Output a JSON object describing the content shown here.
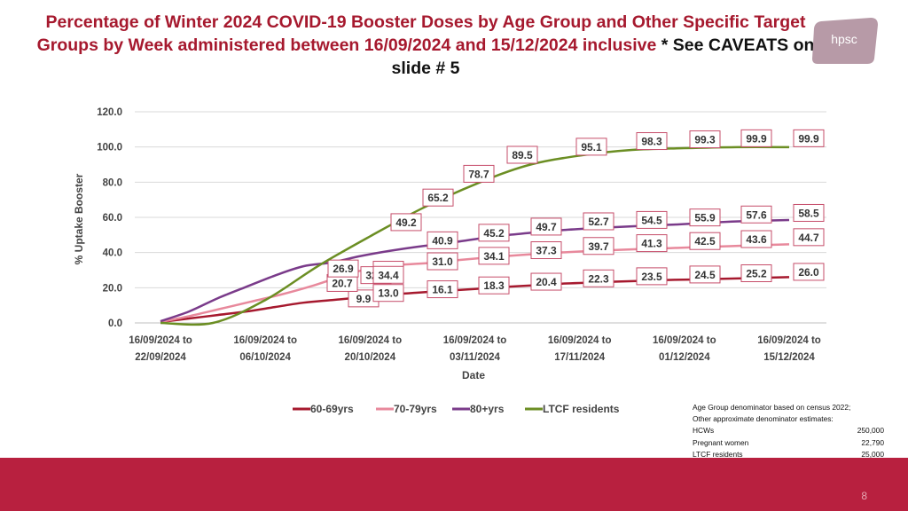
{
  "title": {
    "main": "Percentage of Winter 2024 COVID-19 Booster Doses by Age Group and Other Specific Target Groups by Week administered between 16/09/2024 and 15/12/2024 inclusive",
    "caveat": "* See CAVEATS on slide # 5"
  },
  "logo": {
    "text": "hpsc"
  },
  "chart_data": {
    "type": "line",
    "xlabel": "Date",
    "ylabel": "% Uptake Booster",
    "ylim": [
      0,
      120
    ],
    "yticks": [
      "0.0",
      "20.0",
      "40.0",
      "60.0",
      "80.0",
      "100.0",
      "120.0"
    ],
    "xtick_labels": [
      [
        "16/09/2024 to",
        "22/09/2024"
      ],
      [
        "16/09/2024 to",
        "06/10/2024"
      ],
      [
        "16/09/2024 to",
        "20/10/2024"
      ],
      [
        "16/09/2024 to",
        "03/11/2024"
      ],
      [
        "16/09/2024 to",
        "17/11/2024"
      ],
      [
        "16/09/2024 to",
        "01/12/2024"
      ],
      [
        "16/09/2024 to",
        "15/12/2024"
      ]
    ],
    "grid": true,
    "legend_position": "bottom",
    "series": [
      {
        "name": "60-69yrs",
        "color": "#a6192e",
        "values": [
          0.5,
          2.5,
          4.5,
          6.5,
          9.0,
          11.5,
          13.0,
          14.5,
          16.1,
          17.2,
          18.3,
          19.3,
          20.4,
          21.3,
          22.3,
          22.9,
          23.5,
          24.0,
          24.5,
          24.8,
          25.2,
          25.6,
          26.0
        ],
        "labels": {
          "6": "9.9",
          "8": "13.0",
          "10": "16.1",
          "12": "18.3",
          "14": "20.4",
          "16": "22.3",
          "18": "23.5",
          "20": "24.5",
          "22": "25.2",
          "24": "26.0"
        }
      },
      {
        "name": "70-79yrs",
        "color": "#e8899c",
        "values": [
          0.5,
          4.0,
          8.0,
          12.0,
          16.0,
          20.7,
          26.2,
          31.0,
          33.0,
          34.1,
          35.8,
          37.3,
          38.6,
          39.7,
          40.6,
          41.3,
          42.0,
          42.5,
          43.1,
          43.6,
          44.2,
          44.7
        ],
        "labels": {
          "10": "20.7",
          "12": "26.2",
          "14": "31.0",
          "16": "34.1",
          "18": "37.3",
          "20": "39.7",
          "22": "41.3",
          "24": "42.5",
          "26": "43.6",
          "28": "44.7"
        }
      },
      {
        "name": "80+yrs",
        "color": "#7a3b8a",
        "values": [
          1.0,
          6.5,
          14.0,
          20.5,
          26.9,
          32.2,
          34.4,
          38.0,
          40.9,
          43.3,
          45.2,
          47.6,
          49.7,
          51.3,
          52.7,
          53.7,
          54.5,
          55.3,
          55.9,
          56.8,
          57.6,
          58.1,
          58.5
        ],
        "labels": {
          "30": "26.9",
          "32": "32.2",
          "34": "34.4",
          "36": "40.9",
          "38": "45.2",
          "40": "49.7",
          "42": "52.7",
          "44": "54.5",
          "46": "55.9",
          "48": "57.6",
          "50": "58.5"
        }
      },
      {
        "name": "LTCF residents",
        "color": "#6b8e23",
        "values": [
          0.0,
          0.0,
          13.0,
          32.2,
          49.2,
          65.2,
          78.7,
          89.5,
          95.1,
          98.3,
          99.3,
          99.9,
          99.9
        ],
        "labels": {
          "52": "49.2",
          "54": "65.2",
          "56": "78.7",
          "58": "89.5",
          "60": "95.1",
          "62": "98.3",
          "64": "99.3",
          "66": "99.9",
          "68": "99.9"
        }
      }
    ]
  },
  "note": {
    "line1": "Age Group denominator based on census 2022;",
    "line2": "Other approximate denominator estimates:",
    "rows": [
      {
        "label": "HCWs",
        "value": "250,000"
      },
      {
        "label": "Pregnant women",
        "value": "22,790"
      },
      {
        "label": "LTCF residents",
        "value": "25,000"
      }
    ]
  },
  "footer": {
    "page_number": "8"
  }
}
